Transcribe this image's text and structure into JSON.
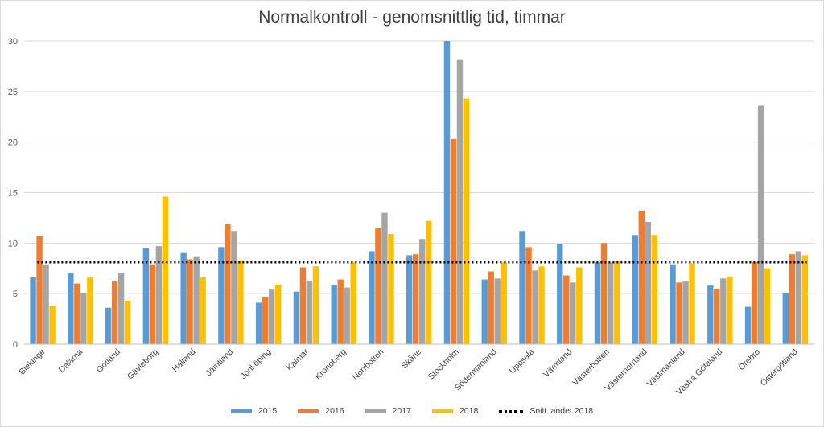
{
  "chart_data": {
    "type": "bar",
    "title": "Normalkontroll - genomsnittlig tid, timmar",
    "categories": [
      "Blekinge",
      "Dalarna",
      "Gotland",
      "Gävleborg",
      "Halland",
      "Jämtland",
      "Jönköping",
      "Kalmar",
      "Kronoberg",
      "Norrbotten",
      "Skåne",
      "Stockholm",
      "Södermanland",
      "Uppsala",
      "Värmland",
      "Västerbotten",
      "Västernorrland",
      "Västmanland",
      "Västra Götaland",
      "Örebro",
      "Östergötland"
    ],
    "series": [
      {
        "name": "2015",
        "color": "#5b9bd5",
        "values": [
          6.6,
          7.0,
          3.6,
          9.5,
          9.1,
          9.6,
          4.1,
          5.2,
          5.9,
          9.2,
          8.8,
          30.0,
          6.4,
          11.2,
          9.9,
          8.1,
          10.8,
          7.9,
          5.8,
          3.7,
          5.1
        ]
      },
      {
        "name": "2016",
        "color": "#ed7d31",
        "values": [
          10.7,
          6.0,
          6.2,
          7.9,
          8.4,
          11.9,
          4.7,
          7.6,
          6.4,
          11.5,
          8.9,
          20.3,
          7.2,
          9.6,
          6.8,
          10.0,
          13.2,
          6.1,
          5.5,
          8.1,
          8.9
        ]
      },
      {
        "name": "2017",
        "color": "#a5a5a5",
        "values": [
          7.9,
          5.1,
          7.0,
          9.7,
          8.7,
          11.2,
          5.4,
          6.3,
          5.6,
          13.0,
          10.4,
          28.2,
          6.5,
          7.3,
          6.1,
          8.1,
          12.1,
          6.2,
          6.5,
          23.6,
          9.2
        ]
      },
      {
        "name": "2018",
        "color": "#ffc000",
        "values": [
          3.8,
          6.6,
          4.3,
          14.6,
          6.6,
          8.3,
          5.9,
          7.7,
          8.1,
          10.9,
          12.2,
          24.3,
          8.1,
          7.7,
          7.6,
          8.2,
          10.8,
          8.0,
          6.7,
          7.5,
          8.8
        ]
      }
    ],
    "reference_line": {
      "name": "Snitt landet 2018",
      "value": 8.1,
      "style": "dotted",
      "color": "#000000"
    },
    "ylim": [
      0,
      30
    ],
    "yticks": [
      "0",
      "5",
      "10",
      "15",
      "20",
      "25",
      "30"
    ],
    "grid": true,
    "legend_position": "bottom",
    "xlabel": "",
    "ylabel": ""
  }
}
